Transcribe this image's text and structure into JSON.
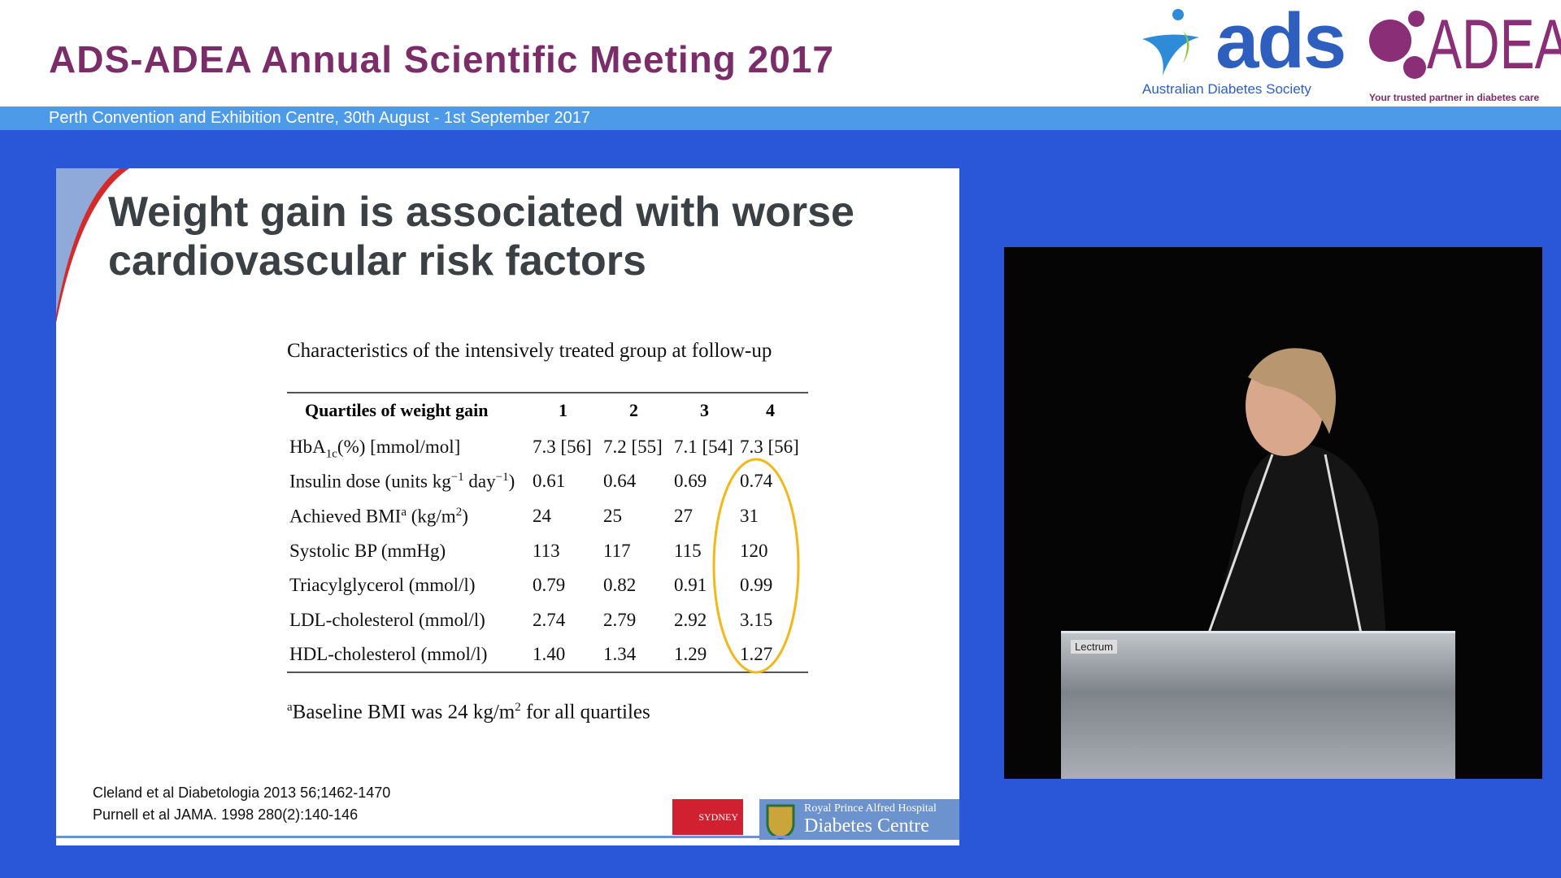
{
  "header": {
    "title": "ADS-ADEA Annual Scientific Meeting 2017",
    "subtitle": "Perth Convention and Exhibition Centre, 30th August - 1st September 2017",
    "ads_logo": "ads",
    "ads_name": "Australian Diabetes Society",
    "adea_logo": "ADEA",
    "adea_tagline": "Your trusted partner in diabetes care"
  },
  "slide": {
    "title_lines": [
      "Weight gain is associated with worse",
      "cardiovascular risk factors"
    ],
    "table": {
      "caption": "Characteristics of the intensively treated group at follow-up",
      "header": [
        "Quartiles of weight gain",
        "1",
        "2",
        "3",
        "4"
      ],
      "rows": [
        {
          "label": [
            "HbA",
            "1c",
            "(%) [mmol/mol]"
          ],
          "values": [
            "7.3 [56]",
            "7.2 [55]",
            "7.1 [54]",
            "7.3 [56]"
          ]
        },
        {
          "label": [
            "Insulin dose (units kg",
            "−1",
            " day",
            "−1",
            ")"
          ],
          "values": [
            "0.61",
            "0.64",
            "0.69",
            "0.74"
          ]
        },
        {
          "label": [
            "Achieved BMI",
            "a",
            " (kg/m",
            "2",
            ")"
          ],
          "values": [
            "24",
            "25",
            "27",
            "31"
          ]
        },
        {
          "label": [
            "Systolic BP (mmHg)"
          ],
          "values": [
            "113",
            "117",
            "115",
            "120"
          ]
        },
        {
          "label": [
            "Triacylglycerol (mmol/l)"
          ],
          "values": [
            "0.79",
            "0.82",
            "0.91",
            "0.99"
          ]
        },
        {
          "label": [
            "LDL-cholesterol (mmol/l)"
          ],
          "values": [
            "2.74",
            "2.79",
            "2.92",
            "3.15"
          ]
        },
        {
          "label": [
            "HDL-cholesterol (mmol/l)"
          ],
          "values": [
            "1.40",
            "1.34",
            "1.29",
            "1.27"
          ]
        }
      ],
      "footnote": [
        "a",
        "Baseline BMI was 24 kg/m",
        "2",
        " for all quartiles"
      ]
    },
    "references": [
      "Cleland et al Diabetologia 2013 56;1462-1470",
      "Purnell et al JAMA. 1998 280(2):140-146"
    ],
    "logos": {
      "sydney": "SYDNEY",
      "rpa_line1": "Royal Prince Alfred Hospital",
      "rpa_line2": "Diabetes Centre"
    }
  },
  "video": {
    "podium_label": "Lectrum"
  }
}
